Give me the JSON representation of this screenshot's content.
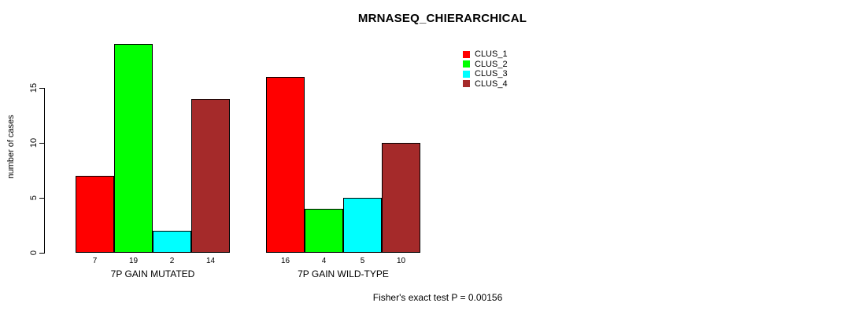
{
  "chart_data": {
    "type": "bar",
    "title": "MRNASEQ_CHIERARCHICAL",
    "ylabel": "number of cases",
    "ylim": [
      0,
      19
    ],
    "yticks": [
      0,
      5,
      10,
      15
    ],
    "grid": false,
    "legend_position": "top-right",
    "bar_value_labels_shown": true,
    "categories": [
      "7P GAIN MUTATED",
      "7P GAIN WILD-TYPE"
    ],
    "series": [
      {
        "name": "CLUS_1",
        "color": "#ff0000",
        "values": [
          7,
          16
        ]
      },
      {
        "name": "CLUS_2",
        "color": "#00ff00",
        "values": [
          19,
          4
        ]
      },
      {
        "name": "CLUS_3",
        "color": "#00ffff",
        "values": [
          2,
          5
        ]
      },
      {
        "name": "CLUS_4",
        "color": "#a52a2a",
        "values": [
          14,
          10
        ]
      }
    ],
    "annotation": "Fisher's exact test P = 0.00156"
  },
  "colors": {
    "background": "#ffffff",
    "axis": "#000000",
    "text": "#000000"
  }
}
